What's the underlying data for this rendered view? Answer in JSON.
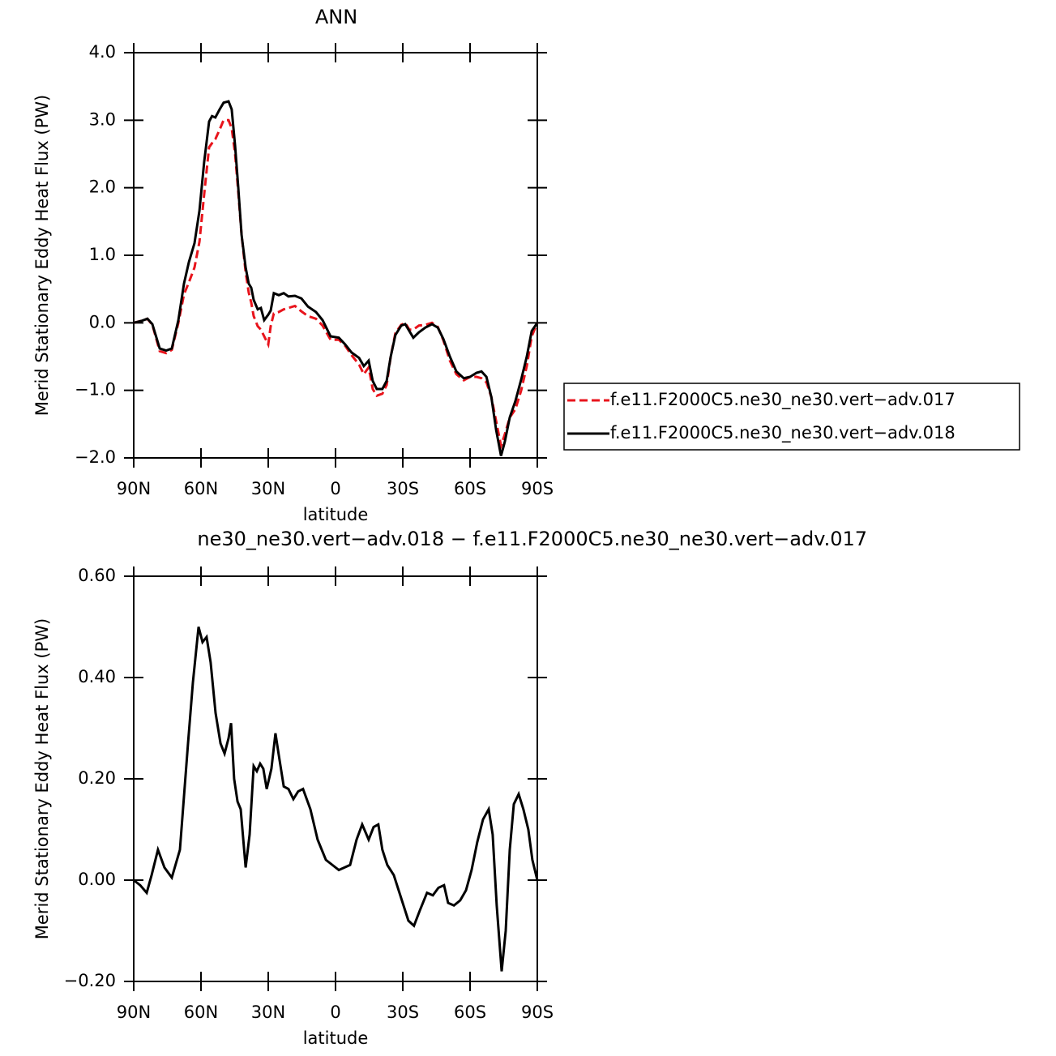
{
  "chart_data": [
    {
      "type": "line",
      "title": "ANN",
      "xlabel": "latitude",
      "ylabel": "Merid Stationary Eddy Heat Flux (PW)",
      "xlim": [
        90,
        -90
      ],
      "xticks": [
        {
          "value": 90,
          "label": "90N"
        },
        {
          "value": 60,
          "label": "60N"
        },
        {
          "value": 30,
          "label": "30N"
        },
        0,
        {
          "value": -30,
          "label": "30S"
        },
        {
          "value": -60,
          "label": "60S"
        },
        {
          "value": -90,
          "label": "90S"
        }
      ],
      "ylim": [
        -2,
        4
      ],
      "yticks": [
        {
          "value": -2,
          "label": "−2.0"
        },
        {
          "value": -1,
          "label": "−1.0"
        },
        {
          "value": 0,
          "label": "0.0"
        },
        {
          "value": 1,
          "label": "1.0"
        },
        {
          "value": 2,
          "label": "2.0"
        },
        {
          "value": 3,
          "label": "3.0"
        },
        {
          "value": 4,
          "label": "4.0"
        }
      ],
      "legend": "right",
      "x": [
        90,
        86.4,
        83.9,
        81.7,
        78.4,
        75.5,
        73.0,
        70.1,
        67.6,
        65.4,
        62.9,
        60.7,
        58.6,
        56.4,
        55.1,
        53.6,
        51.7,
        49.9,
        47.7,
        46.3,
        44.8,
        43.4,
        41.9,
        40.1,
        38.7,
        37.6,
        36.5,
        34.7,
        33.3,
        31.8,
        30.0,
        28.9,
        27.5,
        25.3,
        23.1,
        21.0,
        18.1,
        15.2,
        12.3,
        8.7,
        5.8,
        2.2,
        -1.5,
        -4.3,
        -7.2,
        -10.5,
        -12.6,
        -14.8,
        -16.6,
        -18.4,
        -20.9,
        -22.8,
        -24.6,
        -26.7,
        -29.3,
        -31.1,
        -32.9,
        -34.7,
        -37.2,
        -40.1,
        -43.0,
        -45.6,
        -48.1,
        -51.0,
        -53.9,
        -57.2,
        -60.0,
        -62.9,
        -65.1,
        -67.3,
        -69.5,
        -71.6,
        -73.8,
        -75.5,
        -77.7,
        -80.2,
        -82.8,
        -85.3,
        -87.5,
        -90
      ],
      "series": [
        {
          "name": "f.e11.F2000C5.ne30_ne30.vert−adv.017",
          "color": "#e8141c",
          "dash": "dashed",
          "values": [
            0.0,
            0.03,
            0.06,
            -0.03,
            -0.42,
            -0.45,
            -0.4,
            0.0,
            0.42,
            0.6,
            0.82,
            1.2,
            1.9,
            2.6,
            2.66,
            2.72,
            2.86,
            3.0,
            3.0,
            2.88,
            2.5,
            1.95,
            1.3,
            0.75,
            0.45,
            0.3,
            0.1,
            -0.05,
            -0.1,
            -0.2,
            -0.32,
            -0.05,
            0.14,
            0.16,
            0.2,
            0.22,
            0.25,
            0.17,
            0.1,
            0.06,
            -0.04,
            -0.25,
            -0.25,
            -0.34,
            -0.48,
            -0.62,
            -0.76,
            -0.66,
            -0.98,
            -1.08,
            -1.05,
            -0.92,
            -0.5,
            -0.15,
            -0.03,
            0.0,
            -0.1,
            -0.1,
            -0.04,
            -0.03,
            0.0,
            -0.06,
            -0.26,
            -0.56,
            -0.76,
            -0.85,
            -0.8,
            -0.8,
            -0.82,
            -0.88,
            -1.1,
            -1.45,
            -1.82,
            -1.65,
            -1.4,
            -1.28,
            -1.0,
            -0.64,
            -0.2,
            0.0
          ]
        },
        {
          "name": "f.e11.F2000C5.ne30_ne30.vert−adv.018",
          "color": "#000000",
          "dash": "solid",
          "values": [
            0.0,
            0.03,
            0.06,
            -0.02,
            -0.38,
            -0.41,
            -0.38,
            0.04,
            0.58,
            0.9,
            1.18,
            1.66,
            2.38,
            2.98,
            3.06,
            3.04,
            3.16,
            3.26,
            3.28,
            3.16,
            2.62,
            2.02,
            1.3,
            0.82,
            0.58,
            0.52,
            0.34,
            0.2,
            0.22,
            0.04,
            0.12,
            0.18,
            0.44,
            0.41,
            0.44,
            0.39,
            0.4,
            0.36,
            0.24,
            0.16,
            0.04,
            -0.2,
            -0.22,
            -0.32,
            -0.44,
            -0.52,
            -0.64,
            -0.56,
            -0.86,
            -0.98,
            -0.98,
            -0.86,
            -0.5,
            -0.18,
            -0.04,
            -0.02,
            -0.12,
            -0.22,
            -0.14,
            -0.07,
            -0.02,
            -0.07,
            -0.24,
            -0.5,
            -0.72,
            -0.82,
            -0.8,
            -0.74,
            -0.72,
            -0.8,
            -1.1,
            -1.58,
            -1.97,
            -1.76,
            -1.4,
            -1.16,
            -0.84,
            -0.5,
            -0.12,
            0.0
          ]
        }
      ]
    },
    {
      "type": "line",
      "title": "ne30_ne30.vert−adv.018 − f.e11.F2000C5.ne30_ne30.vert−adv.017",
      "xlabel": "latitude",
      "ylabel": "Merid Stationary Eddy Heat Flux (PW)",
      "xlim": [
        90,
        -90
      ],
      "xticks": [
        {
          "value": 90,
          "label": "90N"
        },
        {
          "value": 60,
          "label": "60N"
        },
        {
          "value": 30,
          "label": "30N"
        },
        0,
        {
          "value": -30,
          "label": "30S"
        },
        {
          "value": -60,
          "label": "60S"
        },
        {
          "value": -90,
          "label": "90S"
        }
      ],
      "ylim": [
        -0.2,
        0.6
      ],
      "yticks": [
        {
          "value": -0.2,
          "label": "−0.20"
        },
        {
          "value": 0,
          "label": "0.00"
        },
        {
          "value": 0.2,
          "label": "0.20"
        },
        {
          "value": 0.4,
          "label": "0.40"
        },
        {
          "value": 0.6,
          "label": "0.60"
        }
      ],
      "color": "#000000",
      "x": [
        90,
        87.1,
        84.2,
        82.0,
        79.2,
        76.3,
        73.0,
        69.4,
        65.8,
        63.6,
        61.1,
        59.3,
        57.5,
        55.7,
        53.5,
        51.3,
        49.5,
        47.7,
        46.6,
        45.2,
        43.7,
        42.3,
        40.1,
        38.3,
        36.5,
        35.1,
        33.6,
        32.2,
        30.7,
        28.6,
        26.8,
        25.4,
        23.1,
        21.0,
        18.8,
        16.7,
        14.5,
        11.2,
        8.0,
        4.3,
        -1.5,
        -4.0,
        -6.5,
        -9.4,
        -11.9,
        -14.8,
        -17.0,
        -19.1,
        -20.9,
        -23.1,
        -26.0,
        -29.6,
        -32.5,
        -35.0,
        -37.6,
        -40.8,
        -43.4,
        -45.9,
        -48.4,
        -50.2,
        -52.8,
        -55.6,
        -58.2,
        -60.7,
        -63.2,
        -65.8,
        -68.3,
        -70.1,
        -71.9,
        -74.1,
        -75.9,
        -77.7,
        -79.5,
        -81.7,
        -83.8,
        -86.0,
        -87.8,
        -90
      ],
      "values": [
        0.0,
        -0.01,
        -0.025,
        0.01,
        0.06,
        0.025,
        0.005,
        0.06,
        0.27,
        0.39,
        0.5,
        0.47,
        0.48,
        0.43,
        0.33,
        0.27,
        0.25,
        0.28,
        0.31,
        0.2,
        0.155,
        0.14,
        0.025,
        0.09,
        0.225,
        0.215,
        0.23,
        0.22,
        0.18,
        0.22,
        0.29,
        0.25,
        0.185,
        0.18,
        0.16,
        0.175,
        0.18,
        0.14,
        0.08,
        0.04,
        0.02,
        0.025,
        0.03,
        0.08,
        0.11,
        0.08,
        0.105,
        0.11,
        0.06,
        0.03,
        0.01,
        -0.04,
        -0.08,
        -0.09,
        -0.06,
        -0.025,
        -0.03,
        -0.015,
        -0.01,
        -0.045,
        -0.05,
        -0.04,
        -0.02,
        0.02,
        0.075,
        0.12,
        0.14,
        0.09,
        -0.05,
        -0.18,
        -0.1,
        0.06,
        0.15,
        0.17,
        0.14,
        0.1,
        0.04,
        0.0
      ]
    }
  ]
}
